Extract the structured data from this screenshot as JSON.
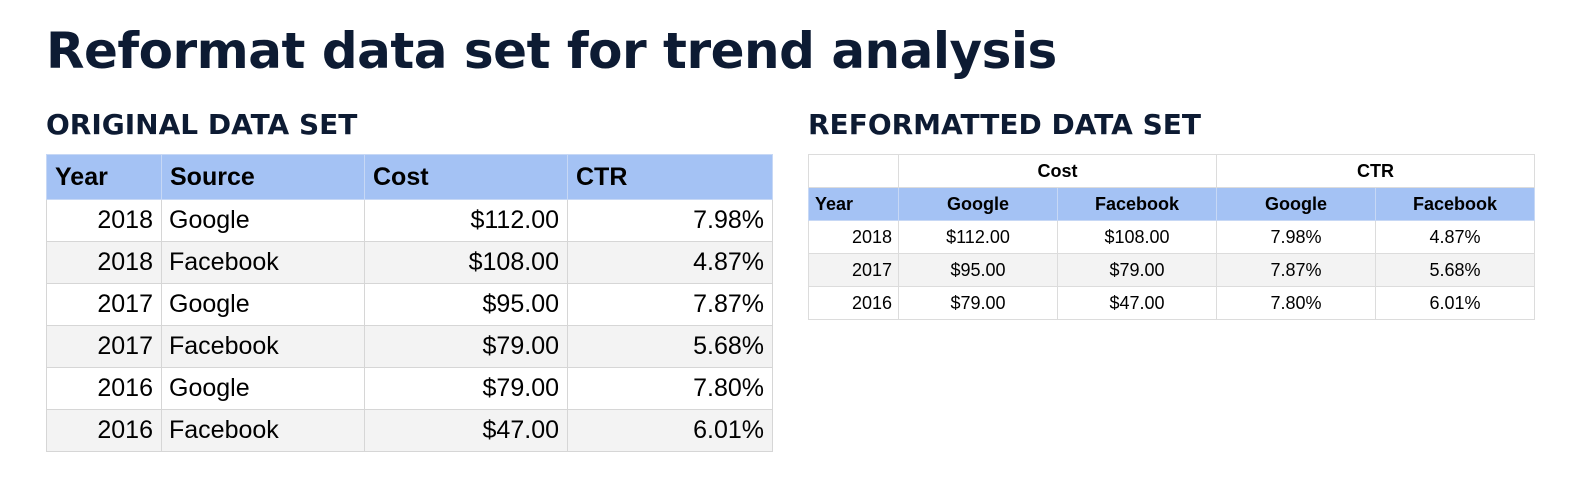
{
  "title": "Reformat data set for trend analysis",
  "original": {
    "heading": "ORIGINAL DATA SET",
    "headers": [
      "Year",
      "Source",
      "Cost",
      "CTR"
    ],
    "rows": [
      [
        "2018",
        "Google",
        "$112.00",
        "7.98%"
      ],
      [
        "2018",
        "Facebook",
        "$108.00",
        "4.87%"
      ],
      [
        "2017",
        "Google",
        "$95.00",
        "7.87%"
      ],
      [
        "2017",
        "Facebook",
        "$79.00",
        "5.68%"
      ],
      [
        "2016",
        "Google",
        "$79.00",
        "7.80%"
      ],
      [
        "2016",
        "Facebook",
        "$47.00",
        "6.01%"
      ]
    ]
  },
  "reformatted": {
    "heading": "REFORMATTED DATA SET",
    "group_headers": [
      "Cost",
      "CTR"
    ],
    "sub_headers": [
      "Year",
      "Google",
      "Facebook",
      "Google",
      "Facebook"
    ],
    "rows": [
      [
        "2018",
        "$112.00",
        "$108.00",
        "7.98%",
        "4.87%"
      ],
      [
        "2017",
        "$95.00",
        "$79.00",
        "7.87%",
        "5.68%"
      ],
      [
        "2016",
        "$79.00",
        "$47.00",
        "7.80%",
        "6.01%"
      ]
    ]
  },
  "colors": {
    "header_fill": "#a4c2f4",
    "stripe_fill": "#f3f3f3",
    "title_color": "#0d1b33"
  }
}
